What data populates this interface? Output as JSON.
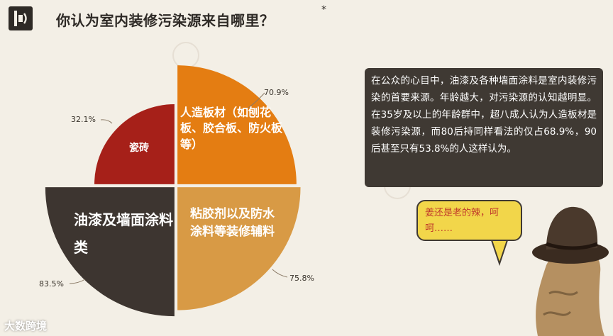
{
  "title": "你认为室内装修污染源来自哪里？",
  "title_mark": "*",
  "chart_data": {
    "type": "pie",
    "title": "你认为室内装修污染源来自哪里？",
    "slices": [
      {
        "label": "人造板材（如刨花板、胶合板、防火板等）",
        "value": 70.9,
        "value_label": "70.9%",
        "color": "#e47d12",
        "position": "top-right"
      },
      {
        "label": "瓷砖",
        "value": 32.1,
        "value_label": "32.1%",
        "color": "#a62019",
        "position": "top-left"
      },
      {
        "label": "油漆及墙面涂料类",
        "value": 83.5,
        "value_label": "83.5%",
        "color": "#3d3530",
        "position": "bottom-left"
      },
      {
        "label": "粘胶剂以及防水涂料等装修辅料",
        "value": 75.8,
        "value_label": "75.8%",
        "color": "#d89a45",
        "position": "bottom-right"
      }
    ]
  },
  "labels": {
    "board": "人造板材（如刨花板、胶合板、防火板等）",
    "ceramic": "瓷砖",
    "paint": "油漆及墙面涂料类",
    "adhesive": "粘胶剂以及防水涂料等装修辅料"
  },
  "note": "在公众的心目中，油漆及各种墙面涂料是室内装修污染的首要来源。年龄越大，对污染源的认知越明显。在35岁及以上的年龄群中，超八成人认为人造板材是装修污染源，而80后持同样看法的仅占68.9%，90后甚至只有53.8%的人这样认为。",
  "bubble": "姜还是老的辣，呵呵……",
  "footer_logo": "大数跨境"
}
